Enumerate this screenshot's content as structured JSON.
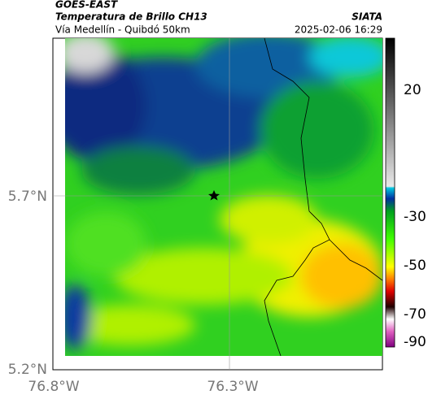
{
  "header": {
    "source": "GOES-EAST",
    "product": "Temperatura de Brillo CH13",
    "region": "Vía Medellín - Quibdó 50km",
    "agency": "SIATA",
    "timestamp": "2025-02-06 16:29"
  },
  "map": {
    "lat_labels": [
      "5.7°N",
      "5.2°N"
    ],
    "lon_labels": [
      "76.8°W",
      "76.3°W"
    ]
  },
  "colorbar": {
    "ticks": [
      "20",
      "-30",
      "-50",
      "-70",
      "-90"
    ]
  }
}
